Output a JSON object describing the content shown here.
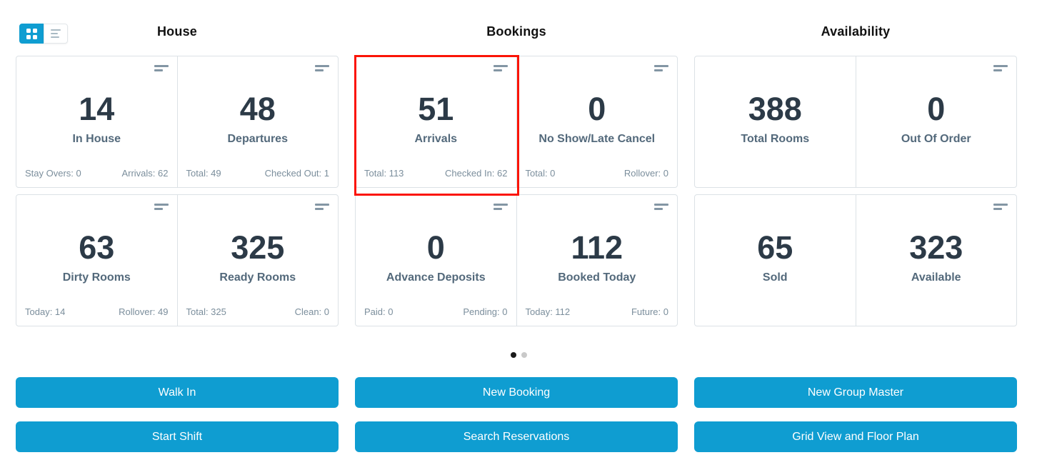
{
  "colors": {
    "accent": "#0f9dd1",
    "highlight": "#fb1406",
    "value_text": "#2c3a47",
    "label_text": "#53697b",
    "footer_text": "#7b8e9c",
    "card_border": "#dce2e6"
  },
  "view_toggle": {
    "grid_icon": "grid-view-icon",
    "list_icon": "list-view-icon",
    "active": "grid"
  },
  "sections": [
    {
      "title": "House",
      "cards": [
        {
          "value": "14",
          "label": "In House",
          "footer_left": "Stay Overs: 0",
          "footer_right": "Arrivals: 62"
        },
        {
          "value": "48",
          "label": "Departures",
          "footer_left": "Total: 49",
          "footer_right": "Checked Out: 1"
        },
        {
          "value": "63",
          "label": "Dirty Rooms",
          "footer_left": "Today: 14",
          "footer_right": "Rollover: 49"
        },
        {
          "value": "325",
          "label": "Ready Rooms",
          "footer_left": "Total: 325",
          "footer_right": "Clean: 0"
        }
      ],
      "buttons": [
        "Walk In",
        "Start Shift"
      ]
    },
    {
      "title": "Bookings",
      "cards": [
        {
          "value": "51",
          "label": "Arrivals",
          "footer_left": "Total: 113",
          "footer_right": "Checked In: 62",
          "highlighted": true
        },
        {
          "value": "0",
          "label": "No Show/Late Cancel",
          "footer_left": "Total: 0",
          "footer_right": "Rollover: 0"
        },
        {
          "value": "0",
          "label": "Advance Deposits",
          "footer_left": "Paid: 0",
          "footer_right": "Pending: 0"
        },
        {
          "value": "112",
          "label": "Booked Today",
          "footer_left": "Today: 112",
          "footer_right": "Future: 0"
        }
      ],
      "buttons": [
        "New Booking",
        "Search Reservations"
      ]
    },
    {
      "title": "Availability",
      "cards": [
        {
          "value": "388",
          "label": "Total Rooms",
          "menu_icon": false
        },
        {
          "value": "0",
          "label": "Out Of Order",
          "menu_icon": true
        },
        {
          "value": "65",
          "label": "Sold",
          "menu_icon": false
        },
        {
          "value": "323",
          "label": "Available",
          "menu_icon": true
        }
      ],
      "buttons": [
        "New Group Master",
        "Grid View and Floor Plan"
      ]
    }
  ],
  "pagination": {
    "dot_count": 2,
    "active_index": 0
  }
}
